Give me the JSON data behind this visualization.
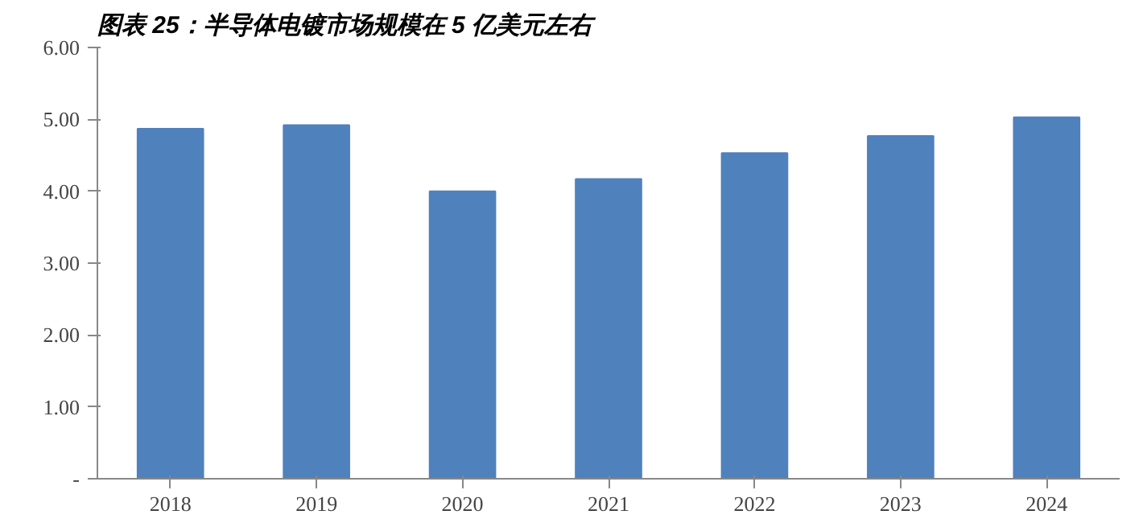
{
  "chart_data": {
    "type": "bar",
    "title": "图表 25：半导体电镀市场规模在 5 亿美元左右",
    "categories": [
      "2018",
      "2019",
      "2020",
      "2021",
      "2022",
      "2023",
      "2024"
    ],
    "values": [
      4.87,
      4.92,
      4.0,
      4.17,
      4.53,
      4.77,
      5.03
    ],
    "color": "#4f81bd",
    "ylim": [
      0,
      6
    ],
    "yticks": [
      {
        "value": 0,
        "label": "-"
      },
      {
        "value": 1,
        "label": "1.00"
      },
      {
        "value": 2,
        "label": "2.00"
      },
      {
        "value": 3,
        "label": "3.00"
      },
      {
        "value": 4,
        "label": "4.00"
      },
      {
        "value": 5,
        "label": "5.00"
      },
      {
        "value": 6,
        "label": "6.00"
      }
    ],
    "grid": false
  }
}
